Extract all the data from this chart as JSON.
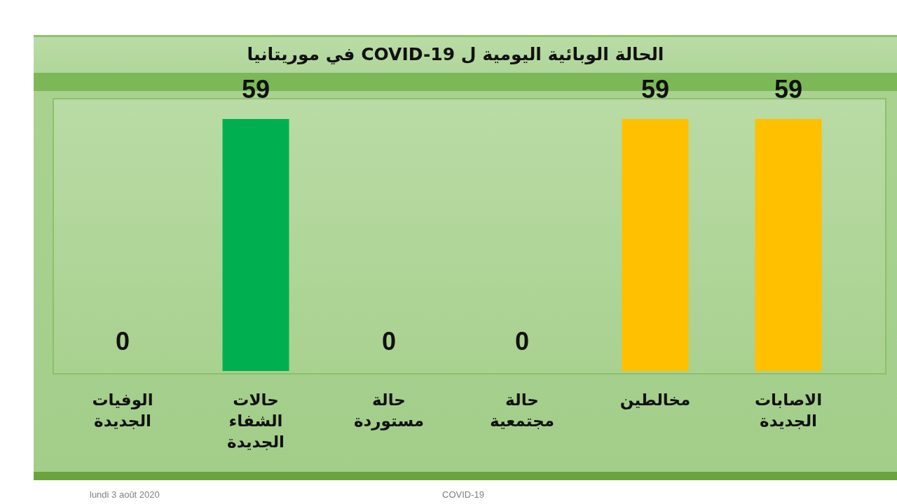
{
  "chart_data": {
    "type": "bar",
    "title": "الحالة الوبائية اليومية ل  COVID-19 في موريتانيا",
    "categories": [
      "الوفيات الجديدة",
      "حالات الشفاء الجديدة",
      "حالة مستوردة",
      "حالة مجتمعية",
      "مخالطين",
      "الاصابات الجديدة"
    ],
    "values": [
      0,
      59,
      0,
      0,
      59,
      59
    ],
    "colors": [
      "#c00000",
      "#00b050",
      "#c09000",
      "#c09000",
      "#ffc000",
      "#ffc000"
    ],
    "data_labels": true,
    "tick_labels": "x",
    "annotations": [
      "lundi 3 août 2020",
      "COVID-19"
    ]
  }
}
